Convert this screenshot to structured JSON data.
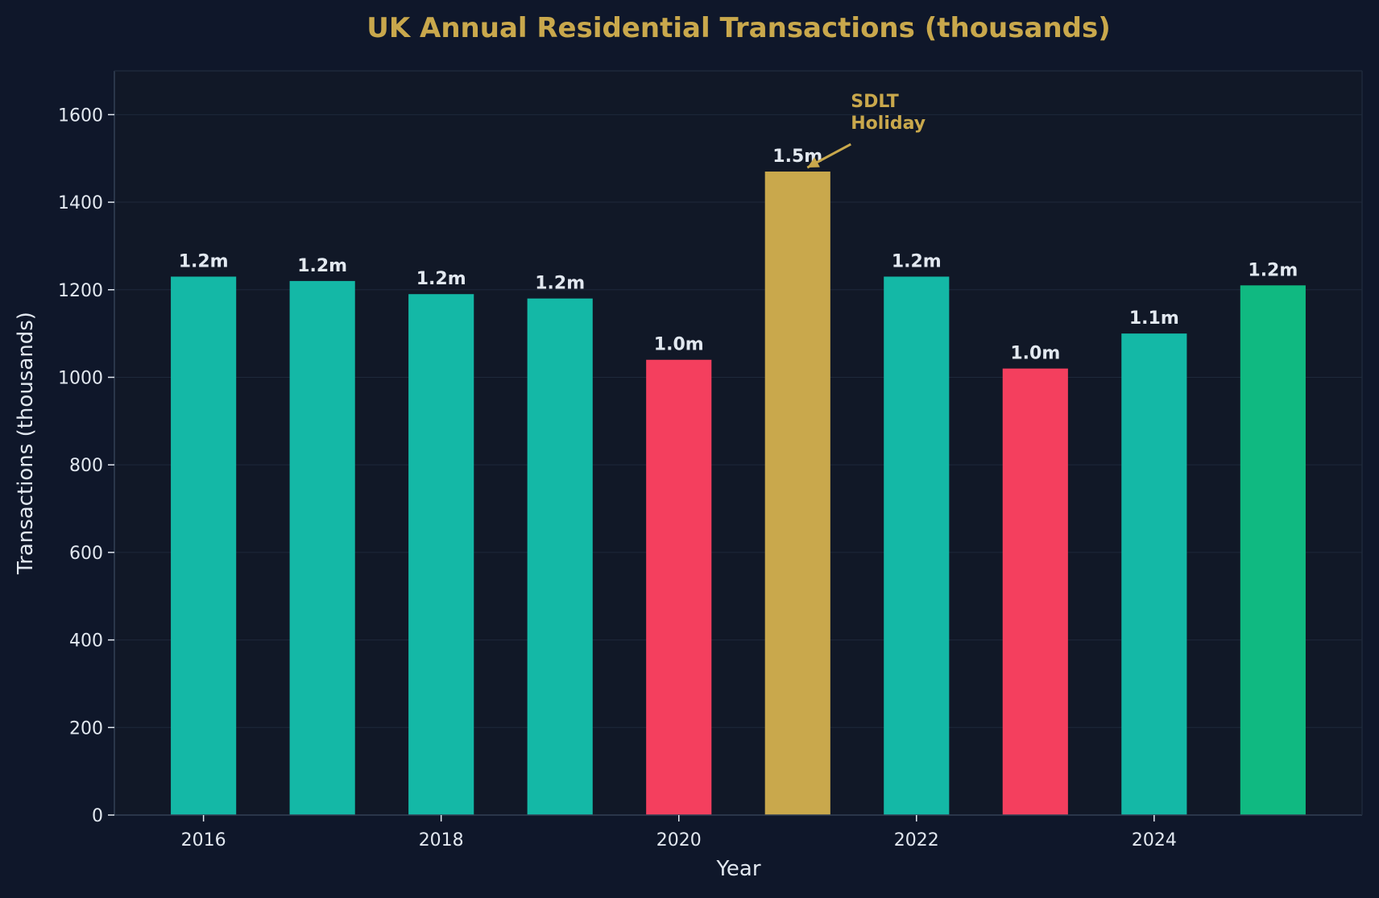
{
  "colors": {
    "background": "#0f172a",
    "plot_background": "#111827",
    "grid": "#1e293b",
    "axis": "#334155",
    "text": "#e2e8f0",
    "title": "#c9a84c",
    "normal": "#14b8a6",
    "decline": "#f43f5e",
    "highlight": "#c9a84c",
    "latest": "#10b981"
  },
  "chart_data": {
    "type": "bar",
    "title": "UK Annual Residential Transactions (thousands)",
    "xlabel": "Year",
    "ylabel": "Transactions (thousands)",
    "ylim": [
      0,
      1700
    ],
    "xlim": [
      2015.25,
      2025.75
    ],
    "yticks": [
      0,
      200,
      400,
      600,
      800,
      1000,
      1200,
      1400,
      1600
    ],
    "xticks": [
      2016,
      2018,
      2020,
      2022,
      2024
    ],
    "grid": true,
    "bars": [
      {
        "year": 2016,
        "value": 1230,
        "label": "1.2m",
        "color_key": "normal"
      },
      {
        "year": 2017,
        "value": 1220,
        "label": "1.2m",
        "color_key": "normal"
      },
      {
        "year": 2018,
        "value": 1190,
        "label": "1.2m",
        "color_key": "normal"
      },
      {
        "year": 2019,
        "value": 1180,
        "label": "1.2m",
        "color_key": "normal"
      },
      {
        "year": 2020,
        "value": 1040,
        "label": "1.0m",
        "color_key": "decline"
      },
      {
        "year": 2021,
        "value": 1470,
        "label": "1.5m",
        "color_key": "highlight"
      },
      {
        "year": 2022,
        "value": 1230,
        "label": "1.2m",
        "color_key": "normal"
      },
      {
        "year": 2023,
        "value": 1020,
        "label": "1.0m",
        "color_key": "decline"
      },
      {
        "year": 2024,
        "value": 1100,
        "label": "1.1m",
        "color_key": "normal"
      },
      {
        "year": 2025,
        "value": 1210,
        "label": "1.2m",
        "color_key": "latest"
      }
    ],
    "annotations": [
      {
        "text_lines": [
          "SDLT",
          "Holiday"
        ],
        "target_year": 2021,
        "target_value": 1470
      }
    ]
  }
}
